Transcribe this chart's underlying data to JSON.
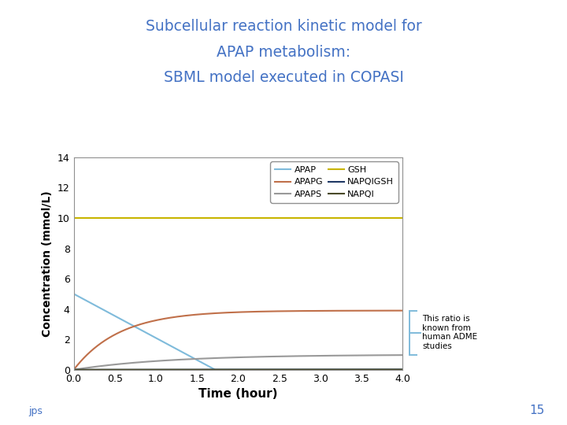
{
  "title_line1": "Subcellular reaction kinetic model for",
  "title_line2": "APAP metabolism:",
  "title_line3": "SBML model executed in COPASI",
  "title_color": "#4472C4",
  "xlabel": "Time (hour)",
  "ylabel": "Concentration (mmol/L)",
  "xlim": [
    0,
    4
  ],
  "ylim": [
    0,
    14
  ],
  "xticks": [
    0,
    0.5,
    1,
    1.5,
    2,
    2.5,
    3,
    3.5,
    4
  ],
  "yticks": [
    0,
    2,
    4,
    6,
    8,
    10,
    12,
    14
  ],
  "bg_color": "#ffffff",
  "annotation_text": "This ratio is\nknown from\nhuman ADME\nstudies",
  "page_number": "15",
  "bracket_color": "#7FBBDB",
  "series": [
    {
      "label": "APAP",
      "color": "#7FBBDB"
    },
    {
      "label": "APAPG",
      "color": "#C0704A"
    },
    {
      "label": "APAPS",
      "color": "#999999"
    },
    {
      "label": "GSH",
      "color": "#C8B400"
    },
    {
      "label": "NAPQIGSH",
      "color": "#1F3864"
    },
    {
      "label": "NAPQI",
      "color": "#4A4A2A"
    }
  ]
}
